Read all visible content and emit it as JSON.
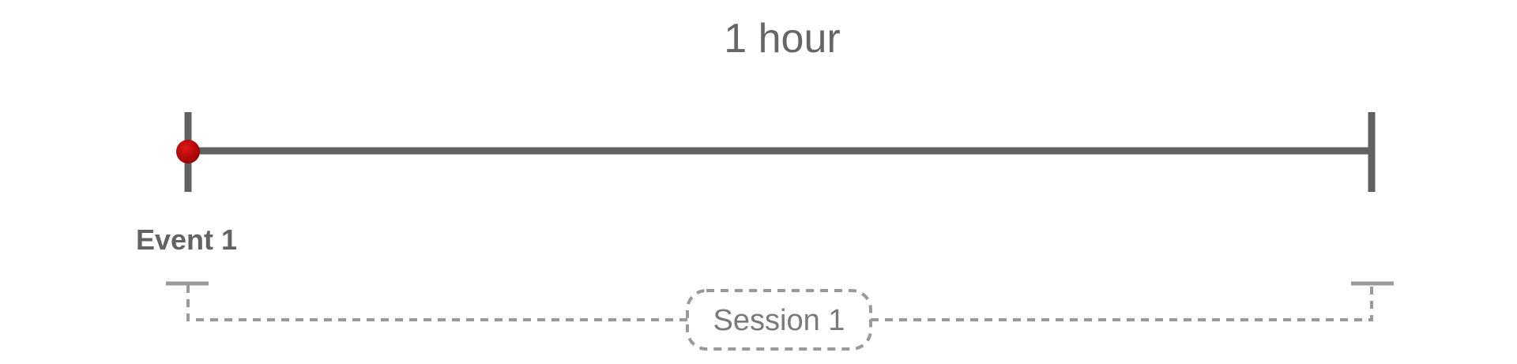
{
  "timeline": {
    "duration_label": "1 hour",
    "events": [
      {
        "label": "Event 1",
        "color": "#bb0000"
      }
    ],
    "session": {
      "label": "Session 1"
    }
  },
  "colors": {
    "line": "#616161",
    "event": "#bb0000",
    "session_line": "#9a9a9a",
    "session_text": "#7a7a7a"
  }
}
